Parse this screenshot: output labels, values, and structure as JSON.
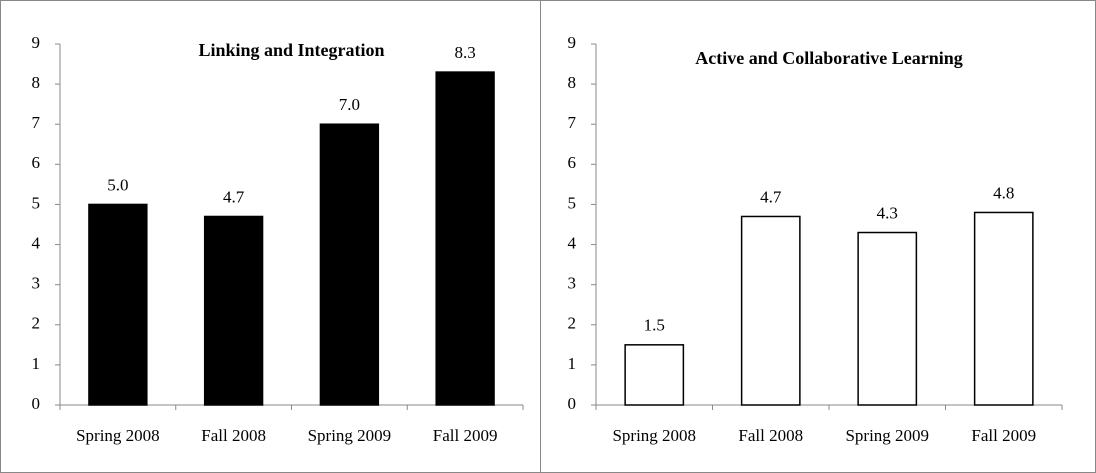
{
  "chart_data": [
    {
      "type": "bar",
      "title": "Linking and Integration",
      "categories": [
        "Spring 2008",
        "Fall 2008",
        "Spring 2009",
        "Fall 2009"
      ],
      "values": [
        5.0,
        4.7,
        7.0,
        8.3
      ],
      "value_labels": [
        "5.0",
        "4.7",
        "7.0",
        "8.3"
      ],
      "color": "#000000",
      "edgecolor": "#000000",
      "ylim": [
        0,
        9
      ],
      "yticks": [
        0,
        1,
        2,
        3,
        4,
        5,
        6,
        7,
        8,
        9
      ],
      "grid": false
    },
    {
      "type": "bar",
      "title": "Active and Collaborative Learning",
      "categories": [
        "Spring 2008",
        "Fall 2008",
        "Spring 2009",
        "Fall 2009"
      ],
      "values": [
        1.5,
        4.7,
        4.3,
        4.8
      ],
      "value_labels": [
        "1.5",
        "4.7",
        "4.3",
        "4.8"
      ],
      "color": "#ffffff",
      "edgecolor": "#000000",
      "ylim": [
        0,
        9
      ],
      "yticks": [
        0,
        1,
        2,
        3,
        4,
        5,
        6,
        7,
        8,
        9
      ],
      "grid": false
    }
  ]
}
